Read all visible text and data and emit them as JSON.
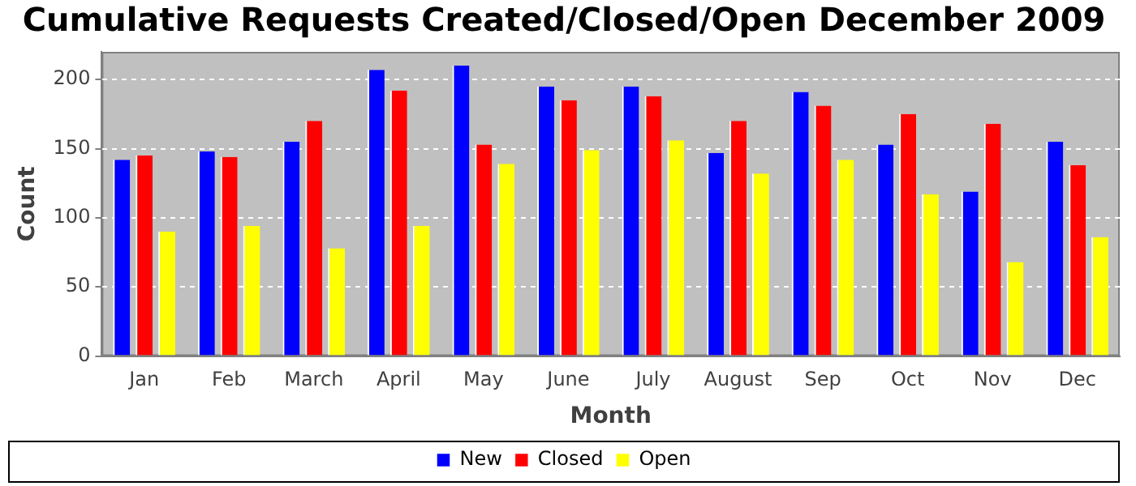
{
  "chart_data": {
    "type": "bar",
    "title": "Cumulative Requests Created/Closed/Open December 2009",
    "xlabel": "Month",
    "ylabel": "Count",
    "categories": [
      "Jan",
      "Feb",
      "March",
      "April",
      "May",
      "June",
      "July",
      "August",
      "Sep",
      "Oct",
      "Nov",
      "Dec"
    ],
    "series": [
      {
        "name": "New",
        "color": "#0000ff",
        "values": [
          142,
          148,
          155,
          207,
          210,
          195,
          195,
          147,
          191,
          153,
          119,
          155
        ]
      },
      {
        "name": "Closed",
        "color": "#ff0000",
        "values": [
          145,
          144,
          170,
          192,
          153,
          185,
          188,
          170,
          181,
          175,
          168,
          138
        ]
      },
      {
        "name": "Open",
        "color": "#ffff00",
        "values": [
          90,
          94,
          78,
          94,
          139,
          149,
          156,
          132,
          142,
          117,
          68,
          86
        ]
      }
    ],
    "ylim": [
      0,
      220
    ],
    "yticks": [
      0,
      50,
      100,
      150,
      200
    ],
    "grid": "y",
    "legend": "bottom"
  }
}
